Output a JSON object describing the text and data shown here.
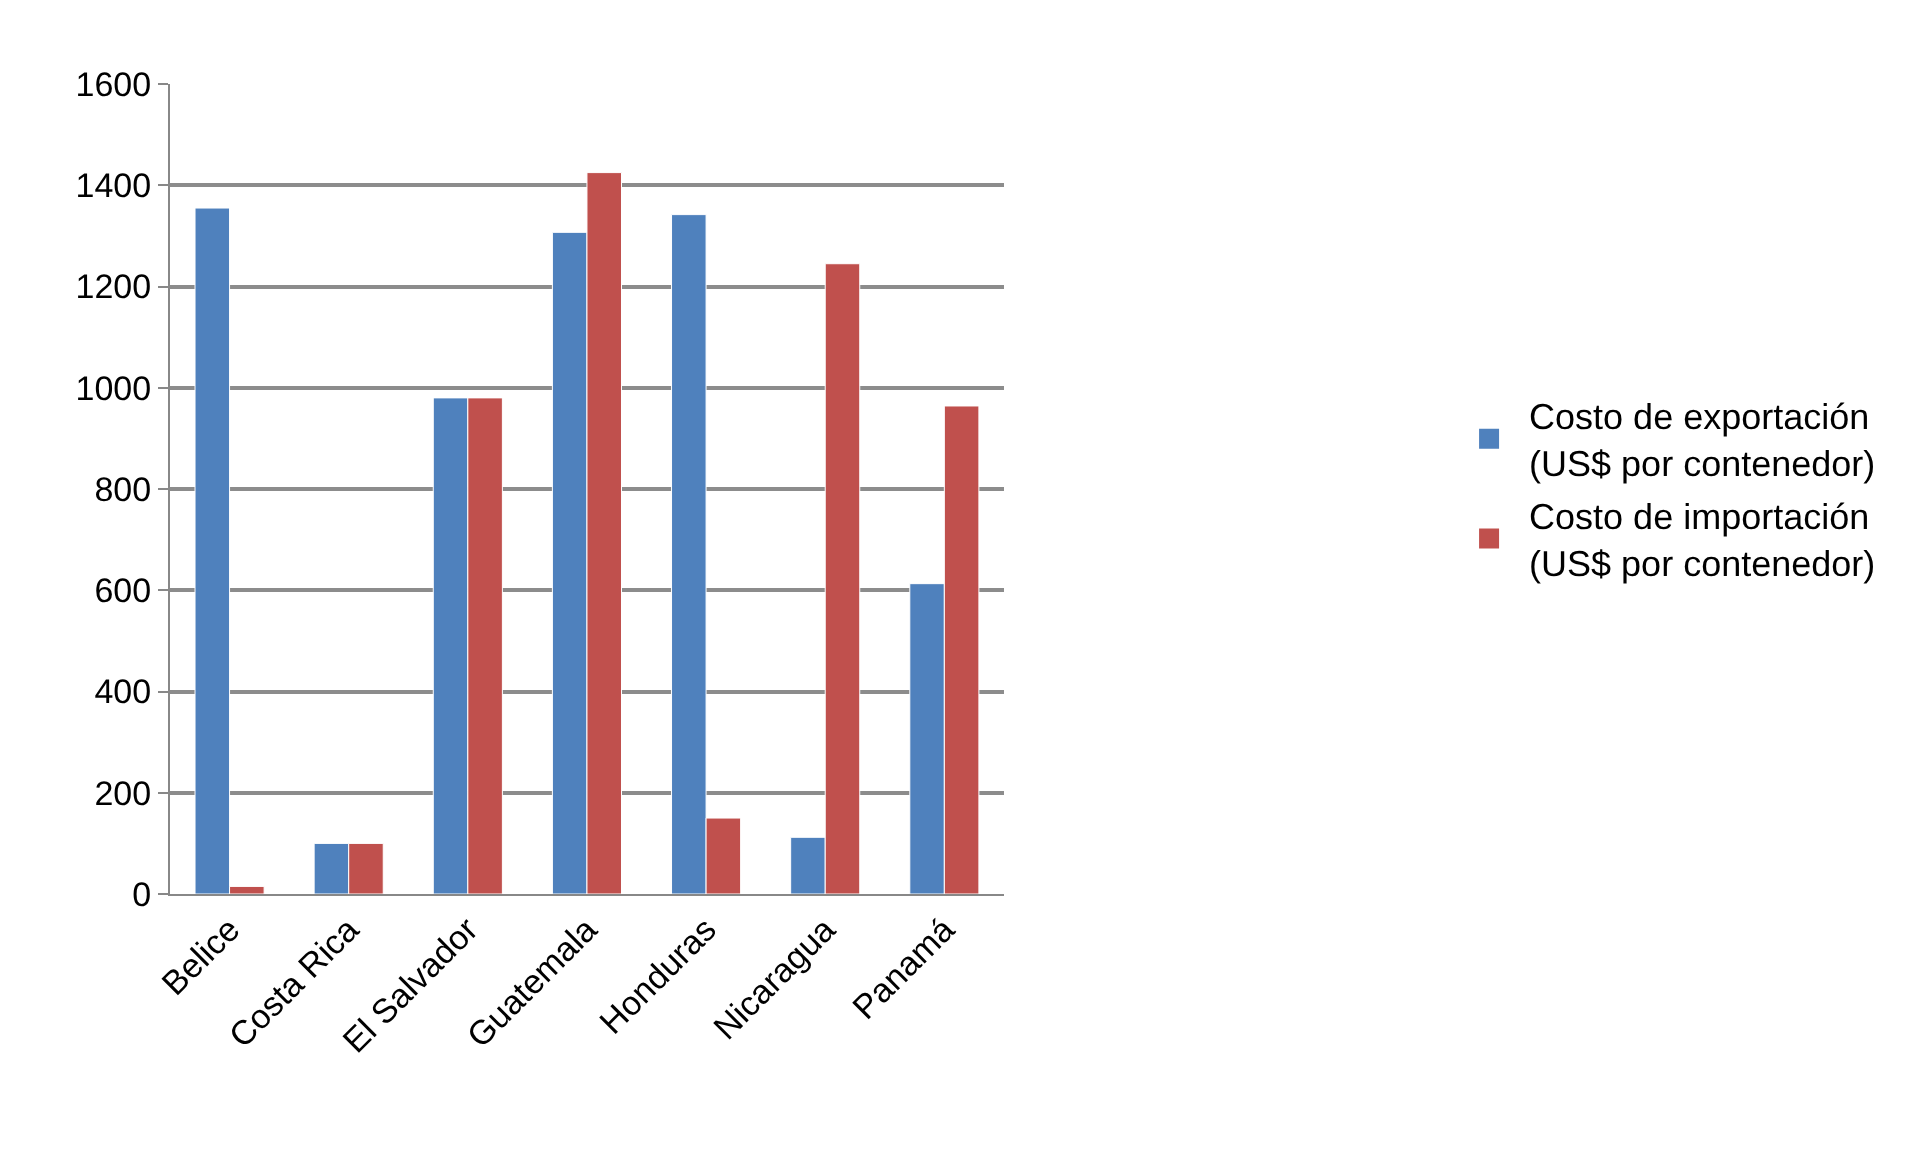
{
  "chart_data": {
    "type": "bar",
    "categories": [
      "Belice",
      "Costa Rica",
      "El Salvador",
      "Guatemala",
      "Honduras",
      "Nicaragua",
      "Panamá"
    ],
    "series": [
      {
        "name": "Costo de exportación (US$ por contenedor)",
        "color": "#4f81bd",
        "values": [
          1355,
          100,
          980,
          1307,
          1342,
          112,
          613
        ]
      },
      {
        "name": "Costo de importación (US$ por contenedor)",
        "color": "#c0504d",
        "values": [
          15,
          100,
          980,
          1425,
          150,
          1245,
          964
        ]
      }
    ],
    "ylim": [
      0,
      1600
    ],
    "yticks": [
      0,
      200,
      400,
      600,
      800,
      1000,
      1200,
      1400,
      1600
    ],
    "grid": "y",
    "legend": "right"
  }
}
